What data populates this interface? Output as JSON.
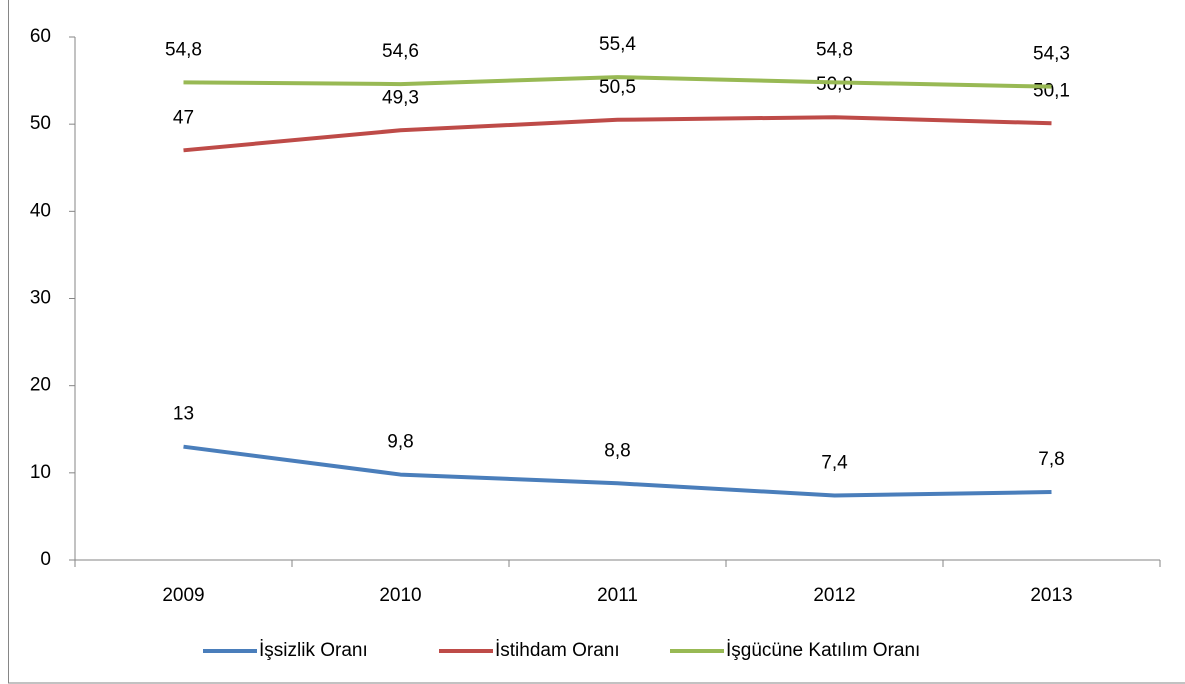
{
  "chart_data": {
    "type": "line",
    "categories": [
      "2009",
      "2010",
      "2011",
      "2012",
      "2013"
    ],
    "series": [
      {
        "name": "İşsizlik Oranı",
        "color": "#4a7ebb",
        "values": [
          13,
          9.8,
          8.8,
          7.4,
          7.8
        ],
        "value_labels": [
          "13",
          "9,8",
          "8,8",
          "7,4",
          "7,8"
        ]
      },
      {
        "name": "İstihdam Oranı",
        "color": "#be4b48",
        "values": [
          47,
          49.3,
          50.5,
          50.8,
          50.1
        ],
        "value_labels": [
          "47",
          "49,3",
          "50,5",
          "50,8",
          "50,1"
        ]
      },
      {
        "name": "İşgücüne Katılım Oranı",
        "color": "#98b954",
        "values": [
          54.8,
          54.6,
          55.4,
          54.8,
          54.3
        ],
        "value_labels": [
          "54,8",
          "54,6",
          "55,4",
          "54,8",
          "54,3"
        ]
      }
    ],
    "ylim": [
      0,
      60
    ],
    "yticks": [
      0,
      10,
      20,
      30,
      40,
      50,
      60
    ],
    "grid": false,
    "legend": "bottom"
  }
}
